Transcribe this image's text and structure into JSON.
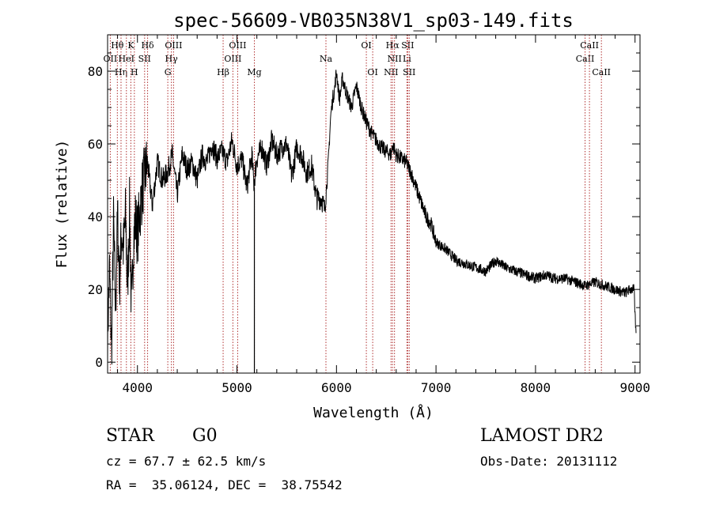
{
  "chart_data": {
    "type": "line",
    "title": "spec-56609-VB035N38V1_sp03-149.fits",
    "xlabel": "Wavelength (Å)",
    "ylabel": "Flux (relative)",
    "xlim": [
      3700,
      9050
    ],
    "ylim": [
      -3,
      90
    ],
    "xticks": [
      4000,
      5000,
      6000,
      7000,
      8000,
      9000
    ],
    "yticks": [
      0,
      20,
      40,
      60,
      80
    ],
    "series": [
      {
        "x": [
          3700,
          3720,
          3740,
          3760,
          3780,
          3800,
          3820,
          3840,
          3860,
          3880,
          3900,
          3920,
          3940,
          3960,
          3980,
          4000,
          4050,
          4100,
          4150,
          4200,
          4250,
          4300,
          4350,
          4400,
          4450,
          4500,
          4550,
          4600,
          4650,
          4700,
          4750,
          4800,
          4850,
          4900,
          4950,
          5000,
          5050,
          5100,
          5150,
          5170,
          5200,
          5250,
          5300,
          5350,
          5400,
          5450,
          5500,
          5550,
          5600,
          5650,
          5700,
          5750,
          5800,
          5850,
          5880,
          5900,
          5920,
          5940,
          5960,
          5980,
          6000,
          6030,
          6060,
          6100,
          6150,
          6200,
          6250,
          6300,
          6350,
          6400,
          6450,
          6500,
          6550,
          6563,
          6600,
          6650,
          6700,
          6750,
          6800,
          6850,
          6900,
          6950,
          7000,
          7100,
          7200,
          7300,
          7400,
          7500,
          7600,
          7700,
          7800,
          7900,
          8000,
          8100,
          8200,
          8300,
          8400,
          8500,
          8600,
          8700,
          8800,
          8900,
          8950,
          8990,
          9000,
          9010
        ],
        "y": [
          8,
          25,
          3,
          38,
          14,
          40,
          22,
          36,
          31,
          40,
          20,
          42,
          13,
          34,
          39,
          35,
          48,
          55,
          43,
          55,
          50,
          52,
          57,
          46,
          57,
          53,
          55,
          50,
          57,
          55,
          60,
          56,
          58,
          55,
          61,
          54,
          56,
          48,
          57,
          49,
          56,
          59,
          54,
          61,
          57,
          59,
          60,
          51,
          59,
          57,
          52,
          54,
          45,
          45,
          42,
          48,
          56,
          67,
          72,
          75,
          80,
          72,
          78,
          74,
          70,
          76,
          70,
          66,
          63,
          61,
          59,
          58,
          57,
          60,
          57,
          56,
          55,
          52,
          48,
          44,
          40,
          38,
          33,
          31,
          28,
          27,
          26,
          25,
          28,
          26,
          25,
          24,
          23,
          24,
          23,
          23,
          22,
          21,
          22,
          21,
          20,
          19,
          20,
          20,
          13,
          8
        ]
      }
    ],
    "line_markers": [
      {
        "label": "Hθ",
        "x": 3798,
        "row": 0
      },
      {
        "label": "OII",
        "x": 3727,
        "row": 1
      },
      {
        "label": "Hη",
        "x": 3835,
        "row": 2
      },
      {
        "label": "HeI",
        "x": 3889,
        "row": 1
      },
      {
        "label": "K",
        "x": 3934,
        "row": 0
      },
      {
        "label": "H",
        "x": 3969,
        "row": 2
      },
      {
        "label": "SII",
        "x": 4072,
        "row": 1
      },
      {
        "label": "Hδ",
        "x": 4102,
        "row": 0
      },
      {
        "label": "G",
        "x": 4305,
        "row": 2
      },
      {
        "label": "Hγ",
        "x": 4341,
        "row": 1
      },
      {
        "label": "OIII",
        "x": 4363,
        "row": 0
      },
      {
        "label": "Hβ",
        "x": 4861,
        "row": 2
      },
      {
        "label": "OIII",
        "x": 4959,
        "row": 1
      },
      {
        "label": "OIII",
        "x": 5007,
        "row": 0
      },
      {
        "label": "Mg",
        "x": 5175,
        "row": 2
      },
      {
        "label": "Na",
        "x": 5894,
        "row": 1
      },
      {
        "label": "OI",
        "x": 6300,
        "row": 0
      },
      {
        "label": "OI",
        "x": 6364,
        "row": 2
      },
      {
        "label": "NII",
        "x": 6548,
        "row": 2
      },
      {
        "label": "Hα",
        "x": 6563,
        "row": 0
      },
      {
        "label": "NII",
        "x": 6583,
        "row": 1
      },
      {
        "label": "Li",
        "x": 6708,
        "row": 1
      },
      {
        "label": "SII",
        "x": 6716,
        "row": 0
      },
      {
        "label": "SII",
        "x": 6731,
        "row": 2
      },
      {
        "label": "CaII",
        "x": 8498,
        "row": 1
      },
      {
        "label": "CaII",
        "x": 8542,
        "row": 0
      },
      {
        "label": "CaII",
        "x": 8662,
        "row": 2
      }
    ],
    "marker_color": "#b03030",
    "line_color": "#000000",
    "grid": false
  },
  "info": {
    "object_class": "STAR",
    "subclass": "G0",
    "survey": "LAMOST DR2",
    "cz": "cz = 67.7 ± 62.5 km/s",
    "obs_date": "Obs-Date: 20131112",
    "radec": "RA =  35.06124, DEC =  38.75542"
  }
}
